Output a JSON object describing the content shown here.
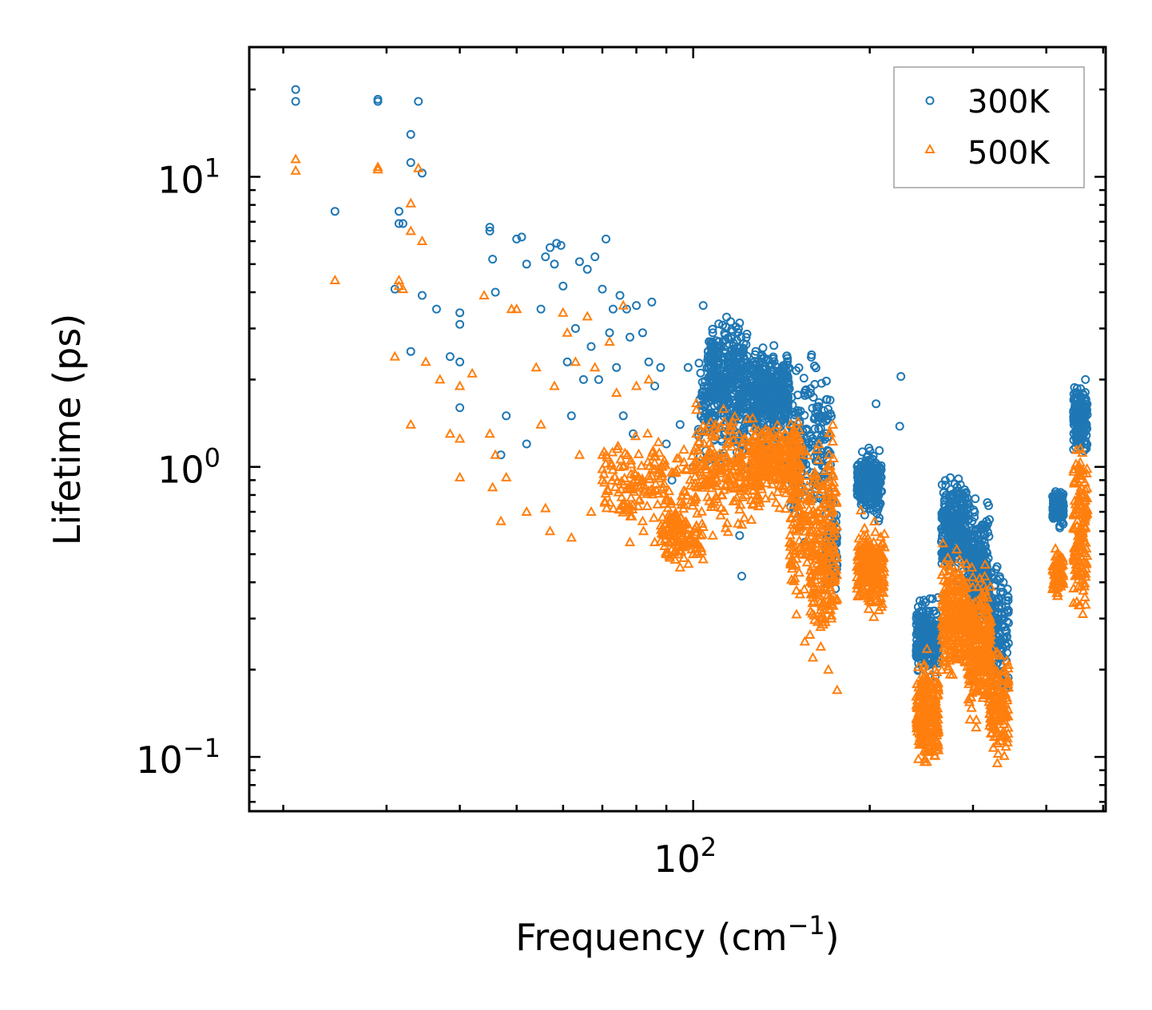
{
  "chart_data": {
    "type": "scatter",
    "title": "",
    "xlabel": "Frequency (cm",
    "xlabel_sup": "−1",
    "xlabel_end": ")",
    "ylabel": "Lifetime (ps)",
    "xscale": "log",
    "yscale": "log",
    "xlim": [
      17.5,
      505
    ],
    "ylim": [
      0.065,
      28
    ],
    "x_ticks": [
      {
        "base": "10",
        "exp": "2",
        "value": 100
      }
    ],
    "y_ticks": [
      {
        "base": "10",
        "exp": "1",
        "value": 10
      },
      {
        "base": "10",
        "exp": "0",
        "value": 1
      },
      {
        "base": "10",
        "exp": "−1",
        "value": 0.1
      }
    ],
    "legend_position": "top-right",
    "series": [
      {
        "name": "300K",
        "color": "#1f77b4",
        "marker": "circle",
        "points": [
          [
            21.0,
            20.0
          ],
          [
            21.0,
            18.2
          ],
          [
            24.5,
            7.6
          ],
          [
            29.0,
            18.5
          ],
          [
            29.0,
            18.2
          ],
          [
            33.0,
            14.0
          ],
          [
            33.0,
            11.2
          ],
          [
            34.0,
            18.2
          ],
          [
            34.5,
            10.3
          ],
          [
            31.5,
            7.6
          ],
          [
            31.5,
            6.9
          ],
          [
            32.0,
            6.9
          ],
          [
            31.0,
            4.1
          ],
          [
            33.0,
            2.5
          ],
          [
            34.5,
            3.9
          ],
          [
            36.5,
            3.5
          ],
          [
            38.5,
            2.4
          ],
          [
            40.0,
            3.4
          ],
          [
            40.0,
            3.1
          ],
          [
            40.0,
            1.6
          ],
          [
            40.0,
            2.3
          ],
          [
            45.0,
            6.7
          ],
          [
            45.0,
            6.5
          ],
          [
            45.5,
            5.2
          ],
          [
            46.0,
            4.0
          ],
          [
            47.0,
            1.1
          ],
          [
            48.0,
            1.5
          ],
          [
            50.0,
            6.1
          ],
          [
            51.0,
            6.2
          ],
          [
            52.0,
            5.0
          ],
          [
            52.0,
            1.2
          ],
          [
            55.0,
            3.5
          ],
          [
            56.0,
            5.3
          ],
          [
            57.0,
            5.7
          ],
          [
            58.0,
            5.0
          ],
          [
            58.5,
            5.9
          ],
          [
            59.5,
            5.8
          ],
          [
            60.0,
            4.2
          ],
          [
            61.0,
            2.3
          ],
          [
            62.0,
            1.5
          ],
          [
            63.0,
            3.0
          ],
          [
            64.0,
            5.1
          ],
          [
            65.0,
            2.0
          ],
          [
            66.0,
            4.8
          ],
          [
            67.0,
            2.6
          ],
          [
            68.0,
            5.3
          ],
          [
            69.0,
            2.0
          ],
          [
            70.0,
            4.1
          ],
          [
            71.0,
            6.1
          ],
          [
            72.0,
            2.9
          ],
          [
            73.0,
            3.5
          ],
          [
            74.0,
            2.2
          ],
          [
            75.0,
            3.9
          ],
          [
            76.0,
            1.5
          ],
          [
            77.0,
            3.5
          ],
          [
            78.0,
            2.8
          ],
          [
            79.0,
            1.3
          ],
          [
            80.0,
            3.6
          ],
          [
            82.0,
            2.9
          ],
          [
            84.0,
            2.3
          ],
          [
            85.0,
            3.7
          ],
          [
            86.0,
            1.9
          ],
          [
            88.0,
            2.2
          ],
          [
            90.0,
            1.2
          ],
          [
            92.0,
            0.9
          ],
          [
            95.0,
            1.4
          ],
          [
            98.0,
            2.2
          ],
          [
            100.0,
            1.0
          ],
          [
            104.0,
            3.6
          ],
          [
            106.0,
            2.5
          ],
          [
            108.0,
            2.9
          ],
          [
            109.0,
            2.4
          ],
          [
            112.0,
            1.6
          ],
          [
            116.0,
            1.3
          ],
          [
            118.0,
            2.5
          ],
          [
            120.0,
            0.58
          ],
          [
            121.0,
            0.42
          ],
          [
            150.0,
            0.75
          ],
          [
            155.0,
            0.55
          ],
          [
            205.0,
            1.65
          ],
          [
            226.0,
            2.05
          ],
          [
            225.0,
            1.38
          ]
        ],
        "clusters": [
          {
            "x": [
              102,
              146
            ],
            "y": [
              0.9,
              3.0
            ],
            "n": 430
          },
          {
            "x": [
              106,
              124
            ],
            "y": [
              1.4,
              3.5
            ],
            "n": 200
          },
          {
            "x": [
              126,
              146
            ],
            "y": [
              1.2,
              2.7
            ],
            "n": 240
          },
          {
            "x": [
              146,
              172
            ],
            "y": [
              0.55,
              2.7
            ],
            "n": 180
          },
          {
            "x": [
              168,
              176
            ],
            "y": [
              0.3,
              1.1
            ],
            "n": 70
          },
          {
            "x": [
              190,
              210
            ],
            "y": [
              0.6,
              1.25
            ],
            "n": 200
          },
          {
            "x": [
              240,
              262
            ],
            "y": [
              0.18,
              0.38
            ],
            "n": 220
          },
          {
            "x": [
              265,
              294
            ],
            "y": [
              0.38,
              1.05
            ],
            "n": 260
          },
          {
            "x": [
              294,
              320
            ],
            "y": [
              0.22,
              0.85
            ],
            "n": 260
          },
          {
            "x": [
              320,
              345
            ],
            "y": [
              0.13,
              0.55
            ],
            "n": 150
          },
          {
            "x": [
              410,
              428
            ],
            "y": [
              0.6,
              0.88
            ],
            "n": 140
          },
          {
            "x": [
              445,
              470
            ],
            "y": [
              1.0,
              2.15
            ],
            "n": 150
          }
        ]
      },
      {
        "name": "500K",
        "color": "#ff7f0e",
        "marker": "triangle",
        "points": [
          [
            21.0,
            11.5
          ],
          [
            21.0,
            10.5
          ],
          [
            24.5,
            4.4
          ],
          [
            29.0,
            10.8
          ],
          [
            29.0,
            10.6
          ],
          [
            31.0,
            2.4
          ],
          [
            31.5,
            4.2
          ],
          [
            31.5,
            4.4
          ],
          [
            32.0,
            4.1
          ],
          [
            33.0,
            8.1
          ],
          [
            33.0,
            6.5
          ],
          [
            33.0,
            1.4
          ],
          [
            34.0,
            10.7
          ],
          [
            34.5,
            6.0
          ],
          [
            35.0,
            2.3
          ],
          [
            37.0,
            2.0
          ],
          [
            38.5,
            1.3
          ],
          [
            40.0,
            1.9
          ],
          [
            40.0,
            1.25
          ],
          [
            40.0,
            0.92
          ],
          [
            42.0,
            2.1
          ],
          [
            44.0,
            3.9
          ],
          [
            45.0,
            1.3
          ],
          [
            45.5,
            0.85
          ],
          [
            46.0,
            1.1
          ],
          [
            47.0,
            0.65
          ],
          [
            48.0,
            0.92
          ],
          [
            49.0,
            3.5
          ],
          [
            50.0,
            3.5
          ],
          [
            52.0,
            0.7
          ],
          [
            54.0,
            2.2
          ],
          [
            55.0,
            1.4
          ],
          [
            56.0,
            0.72
          ],
          [
            57.0,
            0.6
          ],
          [
            58.0,
            1.9
          ],
          [
            60.0,
            3.4
          ],
          [
            61.0,
            2.9
          ],
          [
            62.0,
            0.57
          ],
          [
            63.0,
            2.3
          ],
          [
            64.0,
            1.1
          ],
          [
            66.0,
            3.3
          ],
          [
            67.0,
            0.7
          ],
          [
            68.0,
            2.2
          ],
          [
            70.0,
            0.9
          ],
          [
            72.0,
            2.7
          ],
          [
            74.0,
            1.8
          ],
          [
            76.0,
            3.6
          ],
          [
            78.0,
            0.55
          ],
          [
            80.0,
            1.9
          ],
          [
            82.0,
            0.65
          ],
          [
            84.0,
            2.0
          ],
          [
            86.0,
            0.55
          ],
          [
            90.0,
            0.5
          ],
          [
            95.0,
            0.45
          ],
          [
            100.0,
            0.5
          ],
          [
            104.0,
            0.48
          ],
          [
            108.0,
            0.58
          ],
          [
            150.0,
            0.31
          ],
          [
            155.0,
            0.25
          ],
          [
            160.0,
            0.22
          ],
          [
            165.0,
            0.24
          ],
          [
            170.0,
            0.2
          ],
          [
            176.0,
            0.17
          ]
        ],
        "clusters": [
          {
            "x": [
              70,
              100
            ],
            "y": [
              0.55,
              1.4
            ],
            "n": 160
          },
          {
            "x": [
              88,
              104
            ],
            "y": [
              0.42,
              0.8
            ],
            "n": 120
          },
          {
            "x": [
              100,
              130
            ],
            "y": [
              0.55,
              1.8
            ],
            "n": 230
          },
          {
            "x": [
              126,
              152
            ],
            "y": [
              0.7,
              1.55
            ],
            "n": 260
          },
          {
            "x": [
              146,
              176
            ],
            "y": [
              0.28,
              1.55
            ],
            "n": 240
          },
          {
            "x": [
              158,
              176
            ],
            "y": [
              0.22,
              0.75
            ],
            "n": 110
          },
          {
            "x": [
              190,
              212
            ],
            "y": [
              0.28,
              0.72
            ],
            "n": 230
          },
          {
            "x": [
              240,
              262
            ],
            "y": [
              0.085,
              0.24
            ],
            "n": 240
          },
          {
            "x": [
              265,
              294
            ],
            "y": [
              0.17,
              0.58
            ],
            "n": 260
          },
          {
            "x": [
              294,
              322
            ],
            "y": [
              0.11,
              0.5
            ],
            "n": 280
          },
          {
            "x": [
              320,
              345
            ],
            "y": [
              0.09,
              0.26
            ],
            "n": 140
          },
          {
            "x": [
              410,
              428
            ],
            "y": [
              0.33,
              0.55
            ],
            "n": 80
          },
          {
            "x": [
              445,
              470
            ],
            "y": [
              0.26,
              1.42
            ],
            "n": 160
          }
        ]
      }
    ]
  }
}
